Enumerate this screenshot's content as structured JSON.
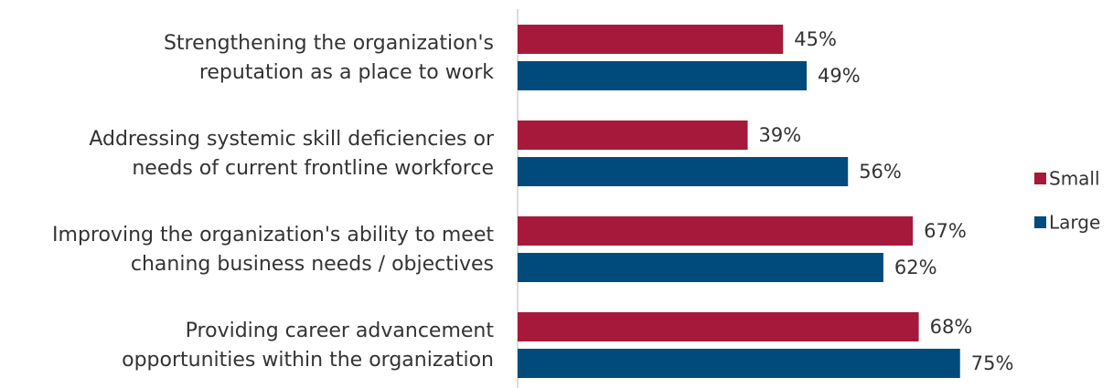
{
  "chart_data": {
    "type": "bar",
    "orientation": "horizontal",
    "categories": [
      [
        "Strengthening the organization's",
        "reputation as a place to work"
      ],
      [
        "Addressing systemic skill deficiencies or",
        "needs of current frontline workforce"
      ],
      [
        "Improving the organization's ability to meet",
        "chaning business needs / objectives"
      ],
      [
        "Providing career advancement",
        "opportunities within the organization"
      ]
    ],
    "series": [
      {
        "name": "Small",
        "color": "#a6193a",
        "values": [
          45,
          39,
          67,
          68
        ],
        "value_labels": [
          "45%",
          "39%",
          "67%",
          "68%"
        ]
      },
      {
        "name": "Large",
        "color": "#004b7c",
        "values": [
          49,
          56,
          62,
          75
        ],
        "value_labels": [
          "49%",
          "56%",
          "62%",
          "75%"
        ]
      }
    ],
    "xlim": [
      0,
      100
    ],
    "legend": "right"
  }
}
